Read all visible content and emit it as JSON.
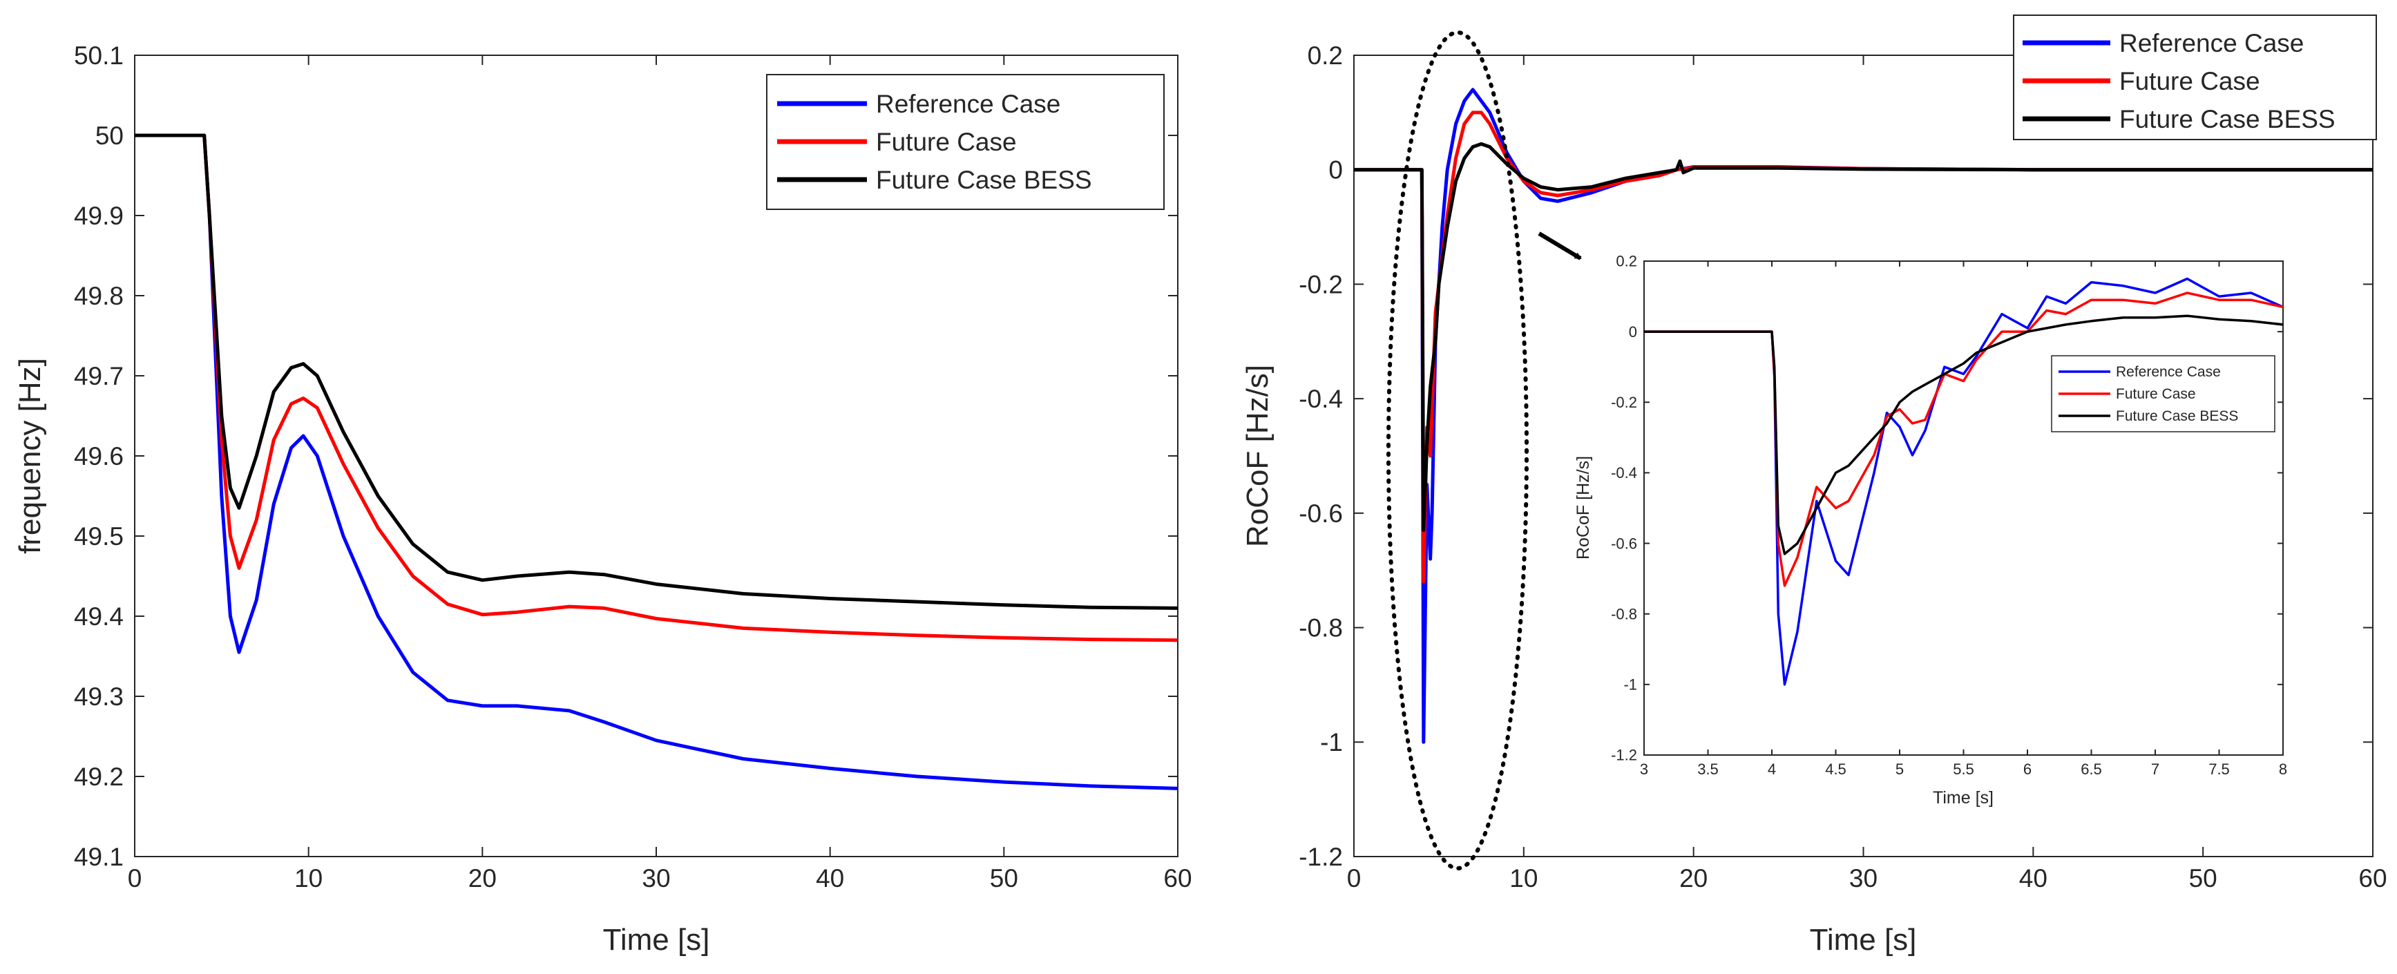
{
  "chart_data": [
    {
      "type": "line",
      "xlabel": "Time [s]",
      "ylabel": "frequency [Hz]",
      "xlim": [
        0,
        60
      ],
      "ylim": [
        49.1,
        50.1
      ],
      "xticks": [
        "0",
        "10",
        "20",
        "30",
        "40",
        "50",
        "60"
      ],
      "yticks": [
        "49.1",
        "49.2",
        "49.3",
        "49.4",
        "49.5",
        "49.6",
        "49.7",
        "49.8",
        "49.9",
        "50",
        "50.1"
      ],
      "legend_position": "top-right",
      "series": [
        {
          "name": "Reference Case",
          "color": "#0000ff",
          "x": [
            0,
            4,
            4.3,
            5,
            5.5,
            6,
            7,
            8,
            9,
            9.7,
            10.5,
            12,
            14,
            16,
            18,
            20,
            22,
            25,
            27,
            30,
            35,
            40,
            45,
            50,
            55,
            60
          ],
          "y": [
            50.0,
            50.0,
            49.9,
            49.55,
            49.4,
            49.355,
            49.42,
            49.54,
            49.61,
            49.625,
            49.6,
            49.5,
            49.4,
            49.33,
            49.295,
            49.288,
            49.288,
            49.282,
            49.268,
            49.245,
            49.222,
            49.21,
            49.2,
            49.193,
            49.188,
            49.185
          ]
        },
        {
          "name": "Future Case",
          "color": "#ff0000",
          "x": [
            0,
            4,
            4.3,
            5,
            5.5,
            6,
            7,
            8,
            9,
            9.7,
            10.5,
            12,
            14,
            16,
            18,
            20,
            22,
            25,
            27,
            30,
            35,
            40,
            45,
            50,
            55,
            60
          ],
          "y": [
            50.0,
            50.0,
            49.9,
            49.62,
            49.5,
            49.46,
            49.52,
            49.62,
            49.665,
            49.672,
            49.66,
            49.59,
            49.51,
            49.45,
            49.415,
            49.402,
            49.405,
            49.412,
            49.41,
            49.397,
            49.385,
            49.38,
            49.376,
            49.373,
            49.371,
            49.37
          ]
        },
        {
          "name": "Future Case BESS",
          "color": "#000000",
          "x": [
            0,
            4,
            4.3,
            5,
            5.5,
            6,
            7,
            8,
            9,
            9.7,
            10.5,
            12,
            14,
            16,
            18,
            20,
            22,
            25,
            27,
            30,
            35,
            40,
            45,
            50,
            55,
            60
          ],
          "y": [
            50.0,
            50.0,
            49.9,
            49.65,
            49.56,
            49.535,
            49.6,
            49.68,
            49.71,
            49.715,
            49.7,
            49.63,
            49.55,
            49.49,
            49.455,
            49.445,
            49.45,
            49.455,
            49.452,
            49.44,
            49.428,
            49.422,
            49.418,
            49.414,
            49.411,
            49.41
          ]
        }
      ]
    },
    {
      "type": "line",
      "xlabel": "Time [s]",
      "ylabel": "RoCoF [Hz/s]",
      "xlim": [
        0,
        60
      ],
      "ylim": [
        -1.2,
        0.2
      ],
      "xticks": [
        "0",
        "10",
        "20",
        "30",
        "40",
        "50",
        "60"
      ],
      "yticks": [
        "-1.2",
        "-1",
        "-0.8",
        "-0.6",
        "-0.4",
        "-0.2",
        "0",
        "0.2"
      ],
      "legend_position": "top-right",
      "annotations": [
        "dotted ellipse around t = 3–8 s",
        "arrow pointing to inset"
      ],
      "series": [
        {
          "name": "Reference Case",
          "color": "#0000ff",
          "x": [
            0,
            4,
            4.02,
            4.1,
            4.3,
            4.5,
            4.6,
            4.8,
            5.0,
            5.2,
            5.5,
            6,
            6.5,
            7,
            7.5,
            8,
            9,
            10,
            11,
            12,
            14,
            16,
            18,
            19,
            20,
            25,
            30,
            40,
            50,
            60
          ],
          "y": [
            0,
            0,
            -0.15,
            -1.0,
            -0.55,
            -0.68,
            -0.6,
            -0.3,
            -0.2,
            -0.1,
            0.0,
            0.08,
            0.12,
            0.14,
            0.12,
            0.1,
            0.03,
            -0.02,
            -0.05,
            -0.055,
            -0.04,
            -0.02,
            -0.01,
            0.0,
            0.005,
            0.005,
            0.002,
            0.0,
            0.0,
            0.0
          ]
        },
        {
          "name": "Future Case",
          "color": "#ff0000",
          "x": [
            0,
            4,
            4.02,
            4.1,
            4.3,
            4.5,
            4.8,
            5.0,
            5.5,
            6,
            6.5,
            7,
            7.5,
            8,
            9,
            10,
            11,
            12,
            14,
            16,
            18,
            19,
            20,
            25,
            30,
            40,
            50,
            60
          ],
          "y": [
            0,
            0,
            -0.12,
            -0.72,
            -0.45,
            -0.5,
            -0.25,
            -0.2,
            -0.08,
            0.02,
            0.08,
            0.1,
            0.1,
            0.08,
            0.02,
            -0.02,
            -0.04,
            -0.045,
            -0.035,
            -0.02,
            -0.01,
            0.0,
            0.004,
            0.004,
            0.002,
            0.0,
            0.0,
            0.0
          ]
        },
        {
          "name": "Future Case BESS",
          "color": "#000000",
          "x": [
            0,
            4,
            4.02,
            4.1,
            4.3,
            4.5,
            4.8,
            5.0,
            5.5,
            6,
            6.5,
            7,
            7.5,
            8,
            9,
            10,
            11,
            12,
            14,
            16,
            18,
            19,
            19.2,
            19.4,
            20,
            25,
            30,
            40,
            50,
            60
          ],
          "y": [
            0,
            0,
            -0.1,
            -0.63,
            -0.48,
            -0.38,
            -0.3,
            -0.2,
            -0.1,
            -0.02,
            0.02,
            0.04,
            0.045,
            0.04,
            0.01,
            -0.015,
            -0.03,
            -0.035,
            -0.03,
            -0.015,
            -0.005,
            0.0,
            0.015,
            -0.005,
            0.003,
            0.003,
            0.001,
            0.0,
            0.0,
            0.0
          ]
        }
      ]
    },
    {
      "type": "line",
      "xlabel": "Time [s]",
      "ylabel": "RoCoF [Hz/s]",
      "xlim": [
        3,
        8
      ],
      "ylim": [
        -1.2,
        0.2
      ],
      "xticks": [
        "3",
        "3.5",
        "4",
        "4.5",
        "5",
        "5.5",
        "6",
        "6.5",
        "7",
        "7.5",
        "8"
      ],
      "yticks": [
        "-1.2",
        "-1",
        "-0.8",
        "-0.6",
        "-0.4",
        "-0.2",
        "0",
        "0.2"
      ],
      "legend_position": "middle-right",
      "series": [
        {
          "name": "Reference Case",
          "color": "#0000ff",
          "x": [
            3,
            4,
            4.02,
            4.05,
            4.1,
            4.2,
            4.35,
            4.5,
            4.6,
            4.8,
            4.9,
            5.0,
            5.1,
            5.2,
            5.35,
            5.5,
            5.6,
            5.8,
            6.0,
            6.15,
            6.3,
            6.5,
            6.75,
            7.0,
            7.25,
            7.5,
            7.75,
            8.0
          ],
          "y": [
            0,
            0,
            -0.13,
            -0.8,
            -1.0,
            -0.85,
            -0.48,
            -0.65,
            -0.69,
            -0.4,
            -0.23,
            -0.27,
            -0.35,
            -0.28,
            -0.1,
            -0.12,
            -0.07,
            0.05,
            0.01,
            0.1,
            0.08,
            0.14,
            0.13,
            0.11,
            0.15,
            0.1,
            0.11,
            0.07
          ]
        },
        {
          "name": "Future Case",
          "color": "#ff0000",
          "x": [
            3,
            4,
            4.02,
            4.05,
            4.1,
            4.2,
            4.35,
            4.5,
            4.6,
            4.8,
            4.9,
            5.0,
            5.1,
            5.2,
            5.35,
            5.5,
            5.6,
            5.8,
            6.0,
            6.15,
            6.3,
            6.5,
            6.75,
            7.0,
            7.25,
            7.5,
            7.75,
            8.0
          ],
          "y": [
            0,
            0,
            -0.12,
            -0.6,
            -0.72,
            -0.64,
            -0.44,
            -0.5,
            -0.48,
            -0.35,
            -0.24,
            -0.22,
            -0.26,
            -0.25,
            -0.12,
            -0.14,
            -0.08,
            0.0,
            0.0,
            0.06,
            0.05,
            0.09,
            0.09,
            0.08,
            0.11,
            0.09,
            0.09,
            0.07
          ]
        },
        {
          "name": "Future Case BESS",
          "color": "#000000",
          "x": [
            3,
            4,
            4.02,
            4.05,
            4.1,
            4.2,
            4.35,
            4.5,
            4.6,
            4.8,
            4.9,
            5.0,
            5.1,
            5.2,
            5.35,
            5.5,
            5.6,
            5.8,
            6.0,
            6.15,
            6.3,
            6.5,
            6.75,
            7.0,
            7.25,
            7.5,
            7.75,
            8.0
          ],
          "y": [
            0,
            0,
            -0.1,
            -0.55,
            -0.63,
            -0.6,
            -0.5,
            -0.4,
            -0.38,
            -0.3,
            -0.26,
            -0.2,
            -0.17,
            -0.15,
            -0.12,
            -0.09,
            -0.06,
            -0.03,
            0.0,
            0.01,
            0.02,
            0.03,
            0.04,
            0.04,
            0.045,
            0.035,
            0.03,
            0.02
          ]
        }
      ]
    }
  ]
}
